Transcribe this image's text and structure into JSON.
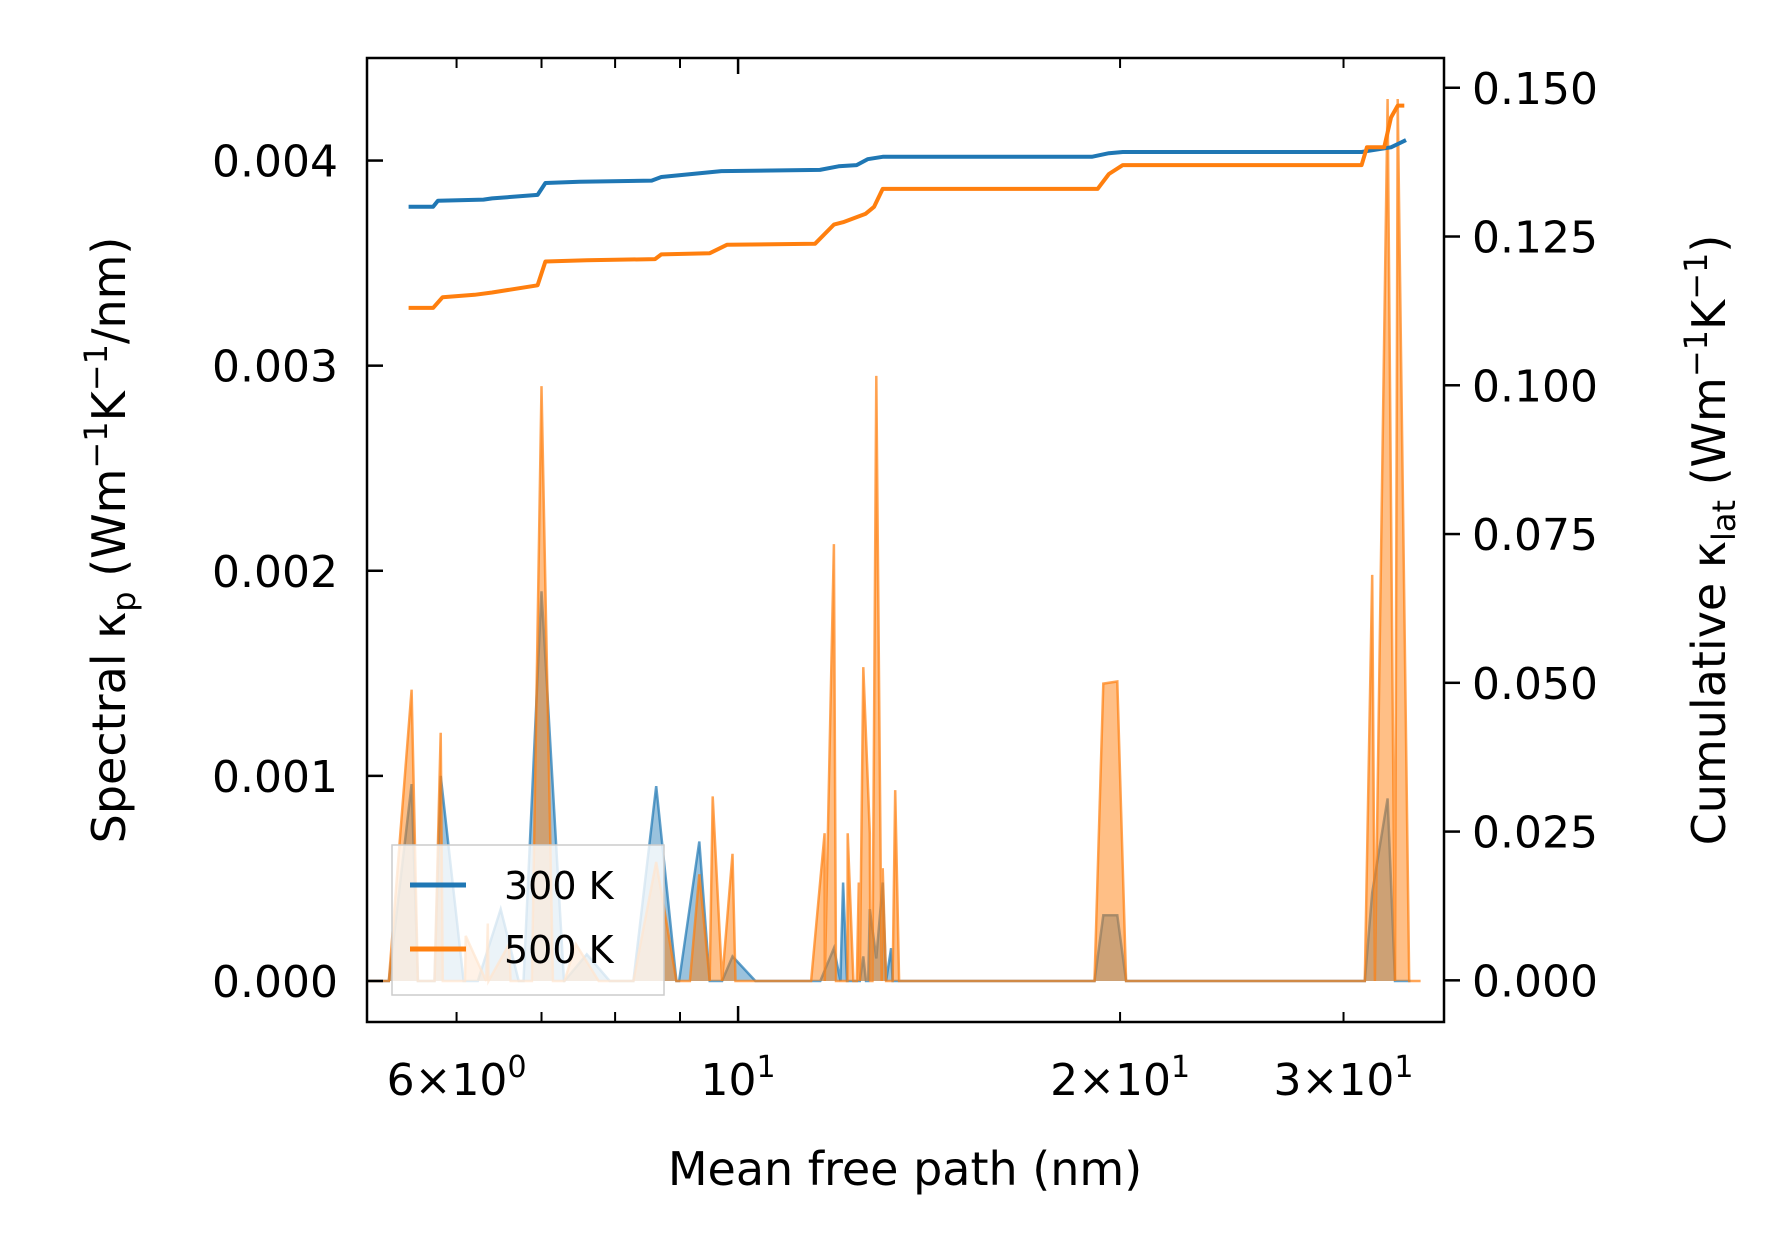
{
  "chart_data": {
    "type": "line",
    "x_scale": "log",
    "xlim": [
      5.1,
      36.0
    ],
    "xlabel": "Mean free path (nm)",
    "x_ticks": [
      {
        "value": 6,
        "label_main": "6×10",
        "label_exp": "0"
      },
      {
        "value": 10,
        "label_main": "10",
        "label_exp": "1"
      },
      {
        "value": 20,
        "label_main": "2×10",
        "label_exp": "1"
      },
      {
        "value": 30,
        "label_main": "3×10",
        "label_exp": "1"
      }
    ],
    "left_axis": {
      "label_pre": "Spectral κ",
      "label_sub": "p",
      "label_mid1": " (Wm",
      "label_sup1": "−1",
      "label_mid2": "K",
      "label_sup2": "−1",
      "label_post": "/nm)",
      "ylim": [
        -0.0002,
        0.0045
      ],
      "ticks": [
        0.0,
        0.001,
        0.002,
        0.003,
        0.004
      ],
      "tick_labels": [
        "0.000",
        "0.001",
        "0.002",
        "0.003",
        "0.004"
      ]
    },
    "right_axis": {
      "label_pre": "Cumulative κ",
      "label_sub": "lat",
      "label_mid1": " (Wm",
      "label_sup1": "−1",
      "label_mid2": "K",
      "label_sup2": "−1",
      "label_post": ")",
      "ylim": [
        -0.007,
        0.155
      ],
      "ticks": [
        0.0,
        0.025,
        0.05,
        0.075,
        0.1,
        0.125,
        0.15
      ],
      "tick_labels": [
        "0.000",
        "0.025",
        "0.050",
        "0.075",
        "0.100",
        "0.125",
        "0.150"
      ]
    },
    "series": [
      {
        "name": "300 K",
        "color": "#1f77b4",
        "cumulative": {
          "x": [
            5.5,
            5.75,
            5.8,
            6.3,
            6.4,
            6.95,
            7.05,
            7.5,
            8.55,
            8.7,
            9.5,
            9.7,
            11.6,
            12.0,
            12.4,
            12.65,
            13.0,
            13.3,
            19.0,
            19.6,
            20.1,
            31.0,
            31.4,
            32.7,
            33.6
          ],
          "y": [
            0.13,
            0.13,
            0.131,
            0.1312,
            0.1314,
            0.132,
            0.134,
            0.1342,
            0.1344,
            0.135,
            0.1358,
            0.136,
            0.1362,
            0.1368,
            0.137,
            0.138,
            0.1384,
            0.1384,
            0.1384,
            0.139,
            0.1392,
            0.1392,
            0.1394,
            0.14,
            0.1412
          ]
        },
        "spectral": {
          "x": [
            5.53,
            5.83,
            6.5,
            7.0,
            7.6,
            8.62,
            9.32,
            9.9,
            11.9,
            12.1,
            12.55,
            12.7,
            12.85,
            13.0,
            13.2,
            19.4,
            19.9,
            31.6,
            32.5
          ],
          "y": [
            0.00096,
            0.001,
            0.00035,
            0.0019,
            0.00013,
            0.00095,
            0.00068,
            0.00012,
            0.00016,
            0.00048,
            0.00012,
            0.00035,
            0.00011,
            0.00048,
            0.00016,
            0.00032,
            0.00032,
            0.00043,
            0.00089
          ]
        }
      },
      {
        "name": "500 K",
        "color": "#ff7f0e",
        "cumulative": {
          "x": [
            5.5,
            5.75,
            5.85,
            6.2,
            6.4,
            6.95,
            7.05,
            7.6,
            8.6,
            8.7,
            9.5,
            9.8,
            11.5,
            11.9,
            12.1,
            12.6,
            12.8,
            13.0,
            13.3,
            19.2,
            19.6,
            20.1,
            31.0,
            31.3,
            32.3,
            32.7,
            33.1,
            33.5
          ],
          "y": [
            0.113,
            0.113,
            0.1148,
            0.1152,
            0.1156,
            0.1168,
            0.1208,
            0.121,
            0.1212,
            0.122,
            0.1222,
            0.1236,
            0.1238,
            0.127,
            0.1274,
            0.1288,
            0.13,
            0.133,
            0.133,
            0.133,
            0.1355,
            0.137,
            0.137,
            0.14,
            0.14,
            0.145,
            0.147,
            0.147
          ]
        },
        "spectral": {
          "x": [
            5.53,
            5.83,
            6.1,
            6.35,
            6.6,
            7.0,
            7.45,
            8.62,
            9.32,
            9.55,
            9.9,
            11.7,
            11.9,
            12.2,
            12.45,
            12.55,
            12.7,
            12.85,
            13.0,
            13.3,
            19.4,
            19.9,
            31.6,
            32.5,
            33.1
          ],
          "y": [
            0.00142,
            0.00121,
            0.00022,
            0.00028,
            0.00018,
            0.0029,
            0.00018,
            0.00058,
            0.00052,
            0.0009,
            0.00062,
            0.00072,
            0.00213,
            0.00072,
            0.00048,
            0.00153,
            0.00072,
            0.00295,
            0.00055,
            0.00093,
            0.00145,
            0.00146,
            0.00198,
            0.0043,
            0.0043
          ]
        }
      }
    ]
  }
}
